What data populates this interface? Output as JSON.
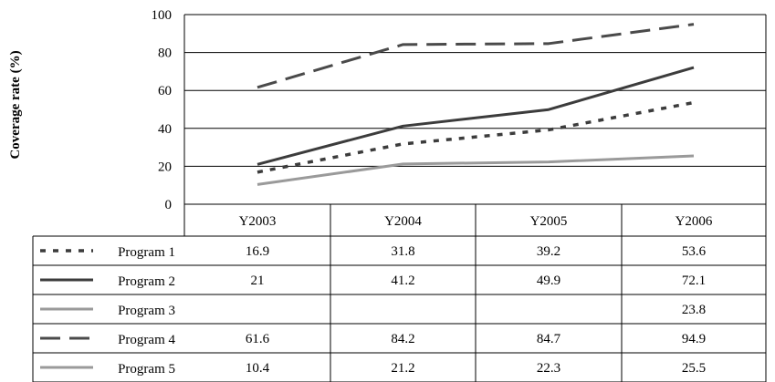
{
  "chart_data": {
    "type": "line",
    "ylabel": "Coverage rate (%)",
    "xlabel": "",
    "title": "",
    "ylim": [
      0,
      100
    ],
    "yticks": [
      "0",
      "20",
      "40",
      "60",
      "80",
      "100"
    ],
    "grid": true,
    "legend": "left of data table",
    "categories": [
      "Y2003",
      "Y2004",
      "Y2005",
      "Y2006"
    ],
    "series": [
      {
        "name": "Program 1",
        "values": [
          16.9,
          31.8,
          39.2,
          53.6
        ],
        "labels": [
          "16.9",
          "31.8",
          "39.2",
          "53.6"
        ],
        "color": "#3c3c3c",
        "style": "dotted"
      },
      {
        "name": "Program 2",
        "values": [
          21,
          41.2,
          49.9,
          72.1
        ],
        "labels": [
          "21",
          "41.2",
          "49.9",
          "72.1"
        ],
        "color": "#3c3c3c",
        "style": "solid"
      },
      {
        "name": "Program 3",
        "values": [
          null,
          null,
          null,
          23.8
        ],
        "labels": [
          "",
          "",
          "",
          "23.8"
        ],
        "color": "#9a9a9a",
        "style": "solid"
      },
      {
        "name": "Program 4",
        "values": [
          61.6,
          84.2,
          84.7,
          94.9
        ],
        "labels": [
          "61.6",
          "84.2",
          "84.7",
          "94.9"
        ],
        "color": "#4a4a4a",
        "style": "dashed"
      },
      {
        "name": "Program 5",
        "values": [
          10.4,
          21.2,
          22.3,
          25.5
        ],
        "labels": [
          "10.4",
          "21.2",
          "22.3",
          "25.5"
        ],
        "color": "#9a9a9a",
        "style": "solid"
      }
    ]
  }
}
